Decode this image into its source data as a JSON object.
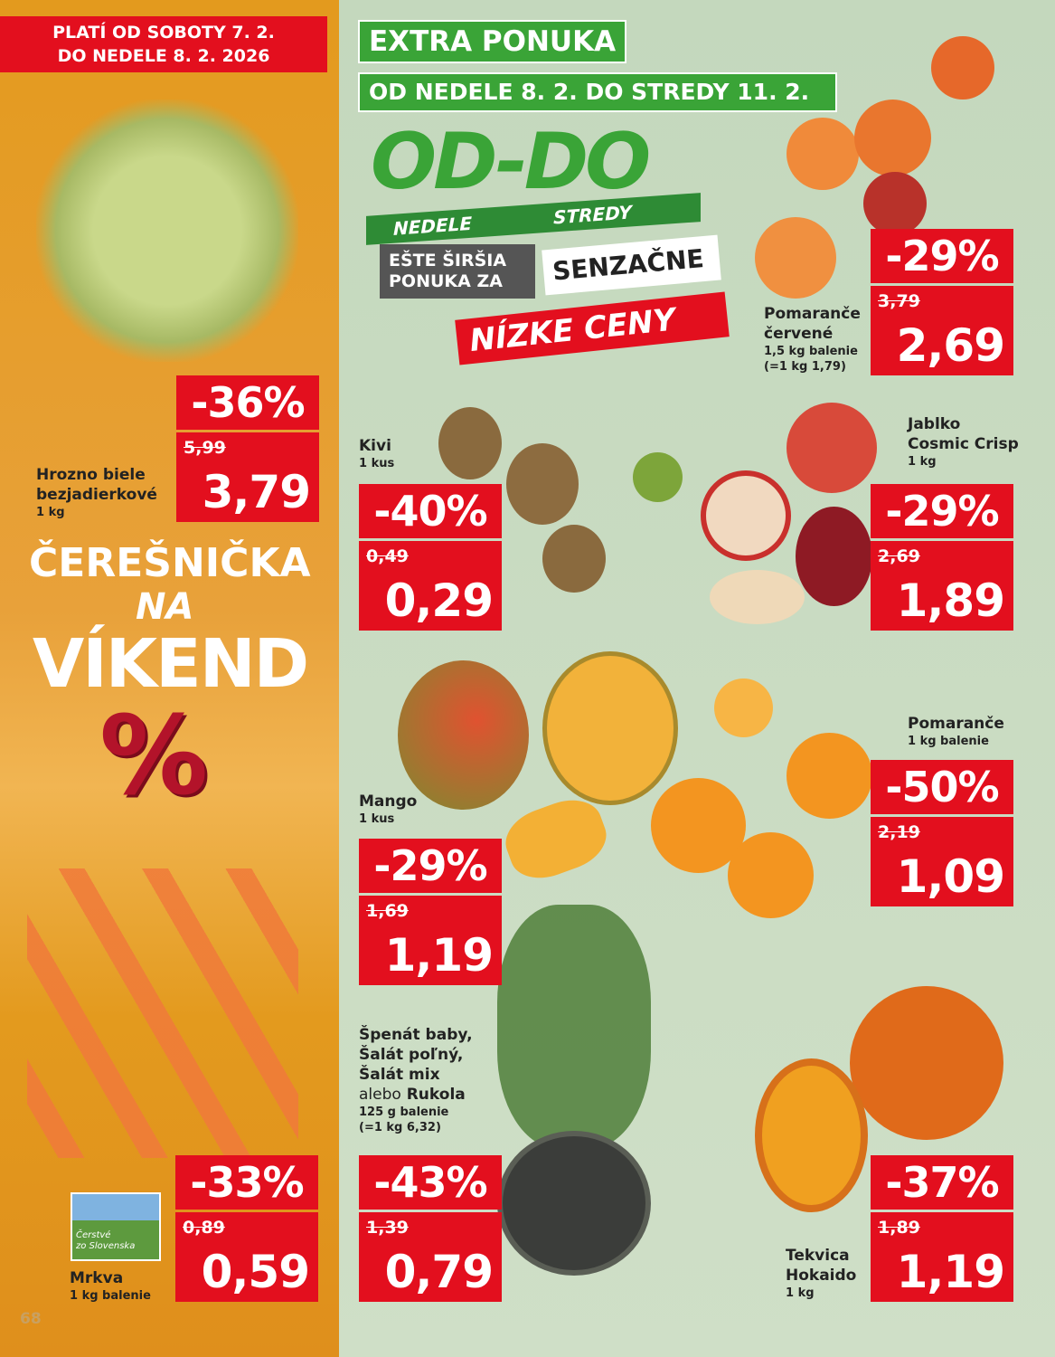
{
  "left_banner": {
    "line1": "PLATÍ OD SOBOTY 7. 2.",
    "line2": "DO NEDELE 8. 2. 2026"
  },
  "extra": {
    "title": "EXTRA PONUKA",
    "dates": "OD NEDELE 8. 2. DO STREDY 11. 2."
  },
  "oddo": {
    "logo": "OD-DO",
    "from": "NEDELE",
    "to": "STREDY",
    "line1": "EŠTE ŠIRŠIA",
    "line2": "PONUKA ZA",
    "senz": "SENZAČNE",
    "nizke": "NÍZKE CENY"
  },
  "weekend": {
    "l1": "ČEREŠNIČKA",
    "l2": "NA",
    "l3": "VÍKEND",
    "symbol": "%"
  },
  "badge": {
    "l1": "Čerstvé",
    "l2": "zo Slovenska"
  },
  "page_number": "68",
  "products": [
    {
      "name": "Hrozno biele bezjadierkové",
      "unit": "1 kg",
      "discount": "-36%",
      "old": "5,99",
      "price": "3,79"
    },
    {
      "name": "Mrkva",
      "unit": "1 kg balenie",
      "discount": "-33%",
      "old": "0,89",
      "price": "0,59"
    },
    {
      "name": "Kivi",
      "unit": "1 kus",
      "discount": "-40%",
      "old": "0,49",
      "price": "0,29"
    },
    {
      "name": "Mango",
      "unit": "1 kus",
      "discount": "-29%",
      "old": "1,69",
      "price": "1,19"
    },
    {
      "name_lines": [
        "Špenát baby,",
        "Šalát poľný,",
        "Šalát mix"
      ],
      "alebo": "alebo",
      "name_last": "Rukola",
      "unit": "125 g balenie",
      "unit_price": "(=1 kg 6,32)",
      "discount": "-43%",
      "old": "1,39",
      "price": "0,79"
    },
    {
      "name_lines": [
        "Pomaranče",
        "červené"
      ],
      "unit": "1,5 kg balenie",
      "unit_price": "(=1 kg 1,79)",
      "discount": "-29%",
      "old": "3,79",
      "price": "2,69"
    },
    {
      "name_lines": [
        "Jablko",
        "Cosmic Crisp"
      ],
      "unit": "1 kg",
      "discount": "-29%",
      "old": "2,69",
      "price": "1,89"
    },
    {
      "name": "Pomaranče",
      "unit": "1 kg balenie",
      "discount": "-50%",
      "old": "2,19",
      "price": "1,09"
    },
    {
      "name_lines": [
        "Tekvica",
        "Hokaido"
      ],
      "unit": "1 kg",
      "discount": "-37%",
      "old": "1,89",
      "price": "1,19"
    }
  ]
}
